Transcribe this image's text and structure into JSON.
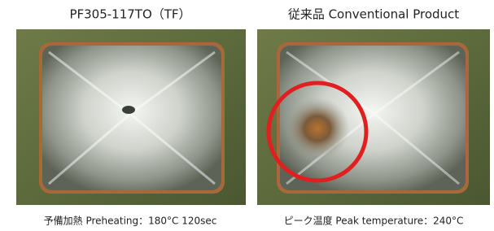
{
  "panels": [
    {
      "title": "PF305-117TO（TF）",
      "caption": "予備加熱 Preheating：180°C 120sec"
    },
    {
      "title": "従来品 Conventional Product",
      "caption": "ピーク温度 Peak temperature：240°C"
    }
  ]
}
